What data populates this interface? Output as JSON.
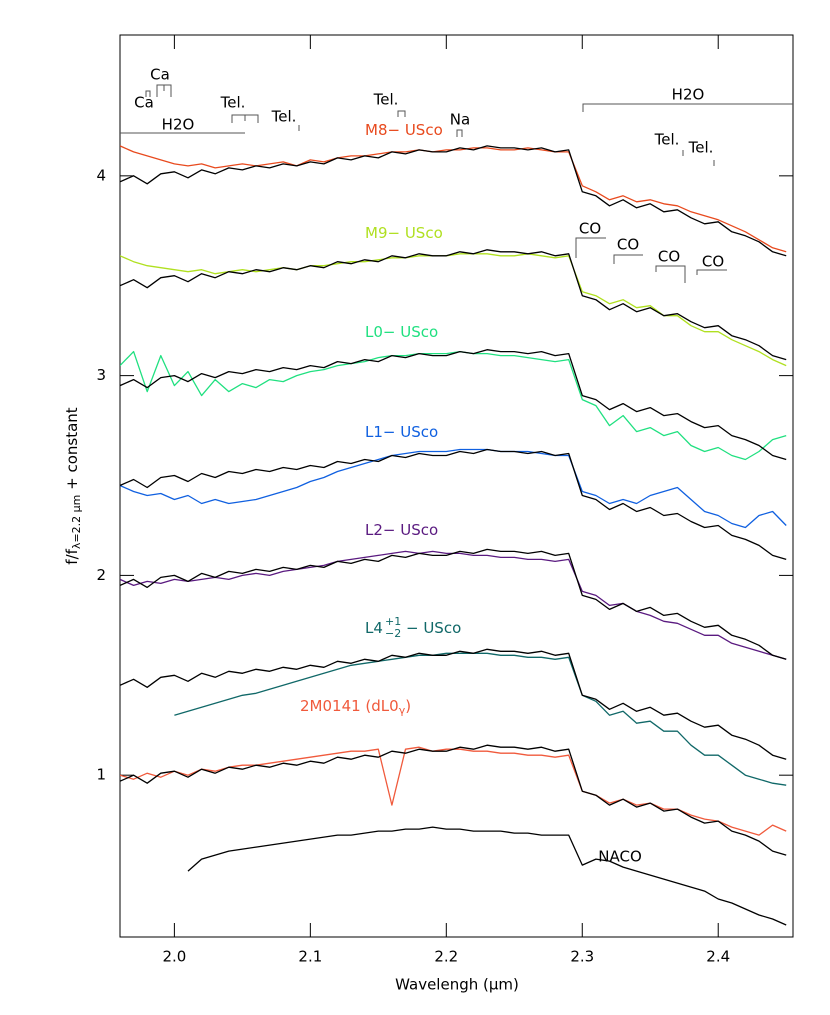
{
  "chart_data": {
    "type": "line",
    "x_label": "Wavelengh (μm)",
    "y_label": {
      "main": "f/f",
      "sub": "λ=2.2 μm",
      "suffix": " + constant"
    },
    "xlim": [
      1.96,
      2.455
    ],
    "ylim": [
      0.19,
      4.705
    ],
    "xticks": [
      {
        "value": 2.0,
        "label": "2.0"
      },
      {
        "value": 2.1,
        "label": "2.1"
      },
      {
        "value": 2.2,
        "label": "2.2"
      },
      {
        "value": 2.3,
        "label": "2.3"
      },
      {
        "value": 2.4,
        "label": "2.4"
      }
    ],
    "yticks": [
      1,
      2,
      3,
      4
    ],
    "x": [
      1.96,
      1.97,
      1.98,
      1.99,
      2.0,
      2.01,
      2.02,
      2.03,
      2.04,
      2.05,
      2.06,
      2.07,
      2.08,
      2.09,
      2.1,
      2.11,
      2.12,
      2.13,
      2.14,
      2.15,
      2.16,
      2.17,
      2.18,
      2.19,
      2.2,
      2.21,
      2.22,
      2.23,
      2.24,
      2.25,
      2.26,
      2.27,
      2.28,
      2.29,
      2.3,
      2.31,
      2.32,
      2.33,
      2.34,
      2.35,
      2.36,
      2.37,
      2.38,
      2.39,
      2.4,
      2.41,
      2.42,
      2.43,
      2.44,
      2.45
    ],
    "series": [
      {
        "name": "M8− USco",
        "color": "#e84a1e",
        "values": [
          4.15,
          4.12,
          4.1,
          4.08,
          4.06,
          4.05,
          4.06,
          4.04,
          4.05,
          4.06,
          4.05,
          4.06,
          4.07,
          4.05,
          4.08,
          4.07,
          4.09,
          4.1,
          4.1,
          4.11,
          4.12,
          4.12,
          4.13,
          4.12,
          4.13,
          4.13,
          4.14,
          4.14,
          4.13,
          4.13,
          4.14,
          4.13,
          4.12,
          4.12,
          3.95,
          3.92,
          3.88,
          3.9,
          3.87,
          3.88,
          3.86,
          3.85,
          3.82,
          3.8,
          3.78,
          3.75,
          3.72,
          3.68,
          3.64,
          3.62
        ]
      },
      {
        "color": "#000000",
        "values": [
          3.97,
          4.0,
          3.96,
          4.01,
          4.02,
          3.99,
          4.03,
          4.01,
          4.04,
          4.03,
          4.05,
          4.04,
          4.06,
          4.05,
          4.07,
          4.06,
          4.09,
          4.08,
          4.1,
          4.09,
          4.12,
          4.11,
          4.13,
          4.12,
          4.12,
          4.14,
          4.13,
          4.15,
          4.14,
          4.14,
          4.13,
          4.14,
          4.12,
          4.13,
          3.92,
          3.9,
          3.85,
          3.88,
          3.84,
          3.86,
          3.82,
          3.83,
          3.79,
          3.76,
          3.77,
          3.72,
          3.7,
          3.67,
          3.62,
          3.6
        ]
      },
      {
        "name": "M9− USco",
        "color": "#b0e020",
        "values": [
          3.6,
          3.57,
          3.55,
          3.54,
          3.53,
          3.52,
          3.53,
          3.51,
          3.52,
          3.53,
          3.52,
          3.53,
          3.54,
          3.53,
          3.55,
          3.55,
          3.56,
          3.57,
          3.57,
          3.58,
          3.59,
          3.59,
          3.6,
          3.6,
          3.6,
          3.61,
          3.61,
          3.61,
          3.6,
          3.6,
          3.61,
          3.6,
          3.59,
          3.6,
          3.42,
          3.4,
          3.36,
          3.38,
          3.34,
          3.35,
          3.3,
          3.3,
          3.25,
          3.22,
          3.22,
          3.18,
          3.15,
          3.12,
          3.08,
          3.05
        ]
      },
      {
        "color": "#000000",
        "values": [
          3.45,
          3.48,
          3.44,
          3.49,
          3.5,
          3.47,
          3.51,
          3.49,
          3.52,
          3.51,
          3.53,
          3.52,
          3.54,
          3.53,
          3.55,
          3.54,
          3.57,
          3.56,
          3.58,
          3.57,
          3.6,
          3.59,
          3.61,
          3.6,
          3.6,
          3.62,
          3.61,
          3.63,
          3.62,
          3.62,
          3.61,
          3.62,
          3.6,
          3.61,
          3.4,
          3.38,
          3.33,
          3.36,
          3.32,
          3.34,
          3.3,
          3.31,
          3.27,
          3.24,
          3.25,
          3.2,
          3.18,
          3.15,
          3.1,
          3.08
        ]
      },
      {
        "name": "L0− USco",
        "color": "#20e080",
        "values": [
          3.05,
          3.12,
          2.92,
          3.1,
          2.95,
          3.02,
          2.9,
          2.98,
          2.92,
          2.96,
          2.94,
          2.98,
          2.97,
          3.0,
          3.02,
          3.03,
          3.05,
          3.06,
          3.07,
          3.09,
          3.1,
          3.1,
          3.11,
          3.11,
          3.11,
          3.12,
          3.11,
          3.11,
          3.1,
          3.1,
          3.09,
          3.08,
          3.07,
          3.08,
          2.88,
          2.85,
          2.75,
          2.8,
          2.72,
          2.74,
          2.7,
          2.72,
          2.65,
          2.62,
          2.64,
          2.6,
          2.58,
          2.62,
          2.68,
          2.7
        ]
      },
      {
        "color": "#000000",
        "values": [
          2.95,
          2.98,
          2.94,
          2.99,
          3.0,
          2.97,
          3.01,
          2.99,
          3.02,
          3.01,
          3.03,
          3.02,
          3.04,
          3.03,
          3.05,
          3.04,
          3.07,
          3.06,
          3.08,
          3.07,
          3.1,
          3.09,
          3.11,
          3.1,
          3.1,
          3.12,
          3.11,
          3.13,
          3.12,
          3.12,
          3.11,
          3.12,
          3.1,
          3.11,
          2.9,
          2.88,
          2.83,
          2.86,
          2.82,
          2.84,
          2.8,
          2.81,
          2.77,
          2.74,
          2.75,
          2.7,
          2.68,
          2.65,
          2.6,
          2.58
        ]
      },
      {
        "name": "L1− USco",
        "color": "#1060e0",
        "values": [
          2.45,
          2.42,
          2.4,
          2.41,
          2.38,
          2.4,
          2.36,
          2.38,
          2.36,
          2.37,
          2.38,
          2.4,
          2.42,
          2.44,
          2.47,
          2.49,
          2.52,
          2.54,
          2.56,
          2.58,
          2.6,
          2.61,
          2.62,
          2.62,
          2.62,
          2.63,
          2.63,
          2.63,
          2.62,
          2.62,
          2.62,
          2.61,
          2.6,
          2.6,
          2.42,
          2.4,
          2.36,
          2.38,
          2.36,
          2.4,
          2.42,
          2.44,
          2.38,
          2.32,
          2.3,
          2.26,
          2.24,
          2.3,
          2.32,
          2.25
        ]
      },
      {
        "color": "#000000",
        "values": [
          2.45,
          2.48,
          2.44,
          2.49,
          2.5,
          2.47,
          2.51,
          2.49,
          2.52,
          2.51,
          2.53,
          2.52,
          2.54,
          2.53,
          2.55,
          2.54,
          2.57,
          2.56,
          2.58,
          2.57,
          2.6,
          2.59,
          2.61,
          2.6,
          2.6,
          2.62,
          2.61,
          2.63,
          2.62,
          2.62,
          2.61,
          2.62,
          2.6,
          2.61,
          2.4,
          2.38,
          2.33,
          2.36,
          2.32,
          2.34,
          2.3,
          2.31,
          2.27,
          2.24,
          2.25,
          2.2,
          2.18,
          2.15,
          2.1,
          2.08
        ]
      },
      {
        "name": "L2− USco",
        "color": "#5a1a80",
        "values": [
          1.98,
          1.95,
          1.97,
          1.96,
          1.98,
          1.97,
          1.98,
          1.99,
          1.98,
          2.0,
          2.01,
          2.0,
          2.02,
          2.03,
          2.04,
          2.05,
          2.07,
          2.08,
          2.09,
          2.1,
          2.11,
          2.12,
          2.11,
          2.12,
          2.11,
          2.11,
          2.1,
          2.1,
          2.09,
          2.09,
          2.08,
          2.08,
          2.07,
          2.08,
          1.92,
          1.9,
          1.85,
          1.86,
          1.82,
          1.8,
          1.77,
          1.76,
          1.73,
          1.7,
          1.7,
          1.66,
          1.64,
          1.62,
          1.6,
          1.58
        ]
      },
      {
        "color": "#000000",
        "values": [
          1.95,
          1.98,
          1.94,
          1.99,
          2.0,
          1.97,
          2.01,
          1.99,
          2.02,
          2.01,
          2.03,
          2.02,
          2.04,
          2.03,
          2.05,
          2.04,
          2.07,
          2.06,
          2.08,
          2.07,
          2.1,
          2.09,
          2.11,
          2.1,
          2.1,
          2.12,
          2.11,
          2.13,
          2.12,
          2.12,
          2.11,
          2.12,
          2.1,
          2.11,
          1.9,
          1.88,
          1.83,
          1.86,
          1.82,
          1.84,
          1.8,
          1.81,
          1.77,
          1.74,
          1.75,
          1.7,
          1.68,
          1.65,
          1.6,
          1.58
        ]
      },
      {
        "name": "L4",
        "name_sup": "+1",
        "name_sub": "−2",
        "name_suffix": " − USco",
        "color": "#106868",
        "values": [
          null,
          null,
          null,
          null,
          1.3,
          1.32,
          1.34,
          1.36,
          1.38,
          1.4,
          1.41,
          1.43,
          1.45,
          1.47,
          1.49,
          1.51,
          1.53,
          1.55,
          1.56,
          1.57,
          1.58,
          1.59,
          1.6,
          1.6,
          1.61,
          1.61,
          1.61,
          1.61,
          1.6,
          1.6,
          1.59,
          1.59,
          1.58,
          1.59,
          1.4,
          1.37,
          1.3,
          1.32,
          1.26,
          1.27,
          1.22,
          1.22,
          1.15,
          1.1,
          1.1,
          1.05,
          1.0,
          0.98,
          0.96,
          0.95
        ]
      },
      {
        "color": "#000000",
        "values": [
          1.45,
          1.48,
          1.44,
          1.49,
          1.5,
          1.47,
          1.51,
          1.49,
          1.52,
          1.51,
          1.53,
          1.52,
          1.54,
          1.53,
          1.55,
          1.54,
          1.57,
          1.56,
          1.58,
          1.57,
          1.6,
          1.59,
          1.61,
          1.6,
          1.6,
          1.62,
          1.61,
          1.63,
          1.62,
          1.62,
          1.61,
          1.62,
          1.6,
          1.61,
          1.4,
          1.38,
          1.33,
          1.36,
          1.32,
          1.34,
          1.3,
          1.31,
          1.27,
          1.24,
          1.25,
          1.2,
          1.18,
          1.15,
          1.1,
          1.08
        ]
      },
      {
        "name": "2M0141 (dL0",
        "name_sub": "γ",
        "name_suffix": ")",
        "color": "#f05a3c",
        "values": [
          1.0,
          0.98,
          1.01,
          0.99,
          1.02,
          1.0,
          1.03,
          1.02,
          1.04,
          1.05,
          1.05,
          1.06,
          1.07,
          1.08,
          1.09,
          1.1,
          1.11,
          1.12,
          1.12,
          1.13,
          0.85,
          1.13,
          1.14,
          1.12,
          1.13,
          1.13,
          1.12,
          1.12,
          1.11,
          1.11,
          1.1,
          1.1,
          1.09,
          1.1,
          0.92,
          0.9,
          0.86,
          0.88,
          0.85,
          0.86,
          0.83,
          0.83,
          0.8,
          0.78,
          0.77,
          0.74,
          0.72,
          0.7,
          0.75,
          0.72
        ]
      },
      {
        "color": "#000000",
        "values": [
          0.97,
          1.0,
          0.96,
          1.01,
          1.02,
          0.99,
          1.03,
          1.01,
          1.04,
          1.03,
          1.05,
          1.04,
          1.06,
          1.05,
          1.07,
          1.06,
          1.09,
          1.08,
          1.1,
          1.09,
          1.12,
          1.11,
          1.13,
          1.12,
          1.12,
          1.14,
          1.13,
          1.15,
          1.14,
          1.14,
          1.13,
          1.14,
          1.12,
          1.13,
          0.92,
          0.9,
          0.85,
          0.88,
          0.84,
          0.86,
          0.82,
          0.83,
          0.79,
          0.76,
          0.77,
          0.72,
          0.7,
          0.67,
          0.62,
          0.6
        ]
      },
      {
        "color": "#000000",
        "values": [
          null,
          null,
          null,
          null,
          null,
          0.52,
          0.58,
          0.6,
          0.62,
          0.63,
          0.64,
          0.65,
          0.66,
          0.67,
          0.68,
          0.69,
          0.7,
          0.7,
          0.71,
          0.72,
          0.72,
          0.73,
          0.73,
          0.74,
          0.73,
          0.73,
          0.72,
          0.72,
          0.72,
          0.71,
          0.71,
          0.7,
          0.7,
          0.7,
          0.55,
          0.58,
          0.57,
          0.54,
          0.52,
          0.5,
          0.48,
          0.46,
          0.44,
          0.42,
          0.38,
          0.36,
          0.33,
          0.3,
          0.28,
          0.25
        ]
      }
    ],
    "annotations": [
      "Ca",
      "Ca",
      "H2O",
      "Tel.",
      "Tel.",
      "Tel.",
      "Na",
      "H2O",
      "Tel.",
      "Tel.",
      "CO",
      "CO",
      "CO",
      "CO",
      "NACO"
    ]
  }
}
